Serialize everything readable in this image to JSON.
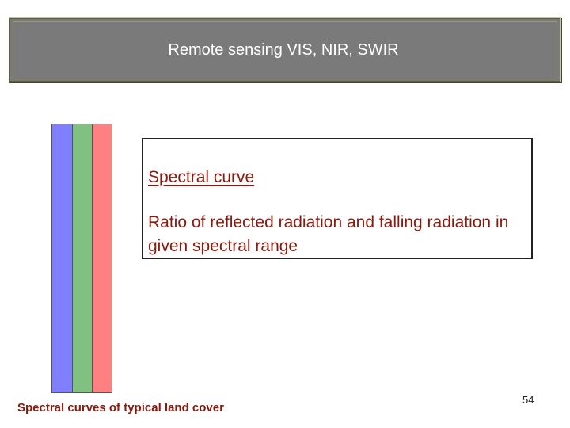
{
  "slide": {
    "title": "Remote sensing VIS, NIR, SWIR",
    "definition_term": "Spectral curve",
    "definition_text": "Ratio of reflected radiation and falling radiation in given spectral range",
    "caption": "Spectral curves of typical land cover",
    "page_number": "54"
  },
  "colors": {
    "title_bg": "#7a7a7a",
    "text_red": "#8b1a0e",
    "band_blue": "#8080ff",
    "band_green": "#80c080",
    "band_red": "#ff8080"
  }
}
